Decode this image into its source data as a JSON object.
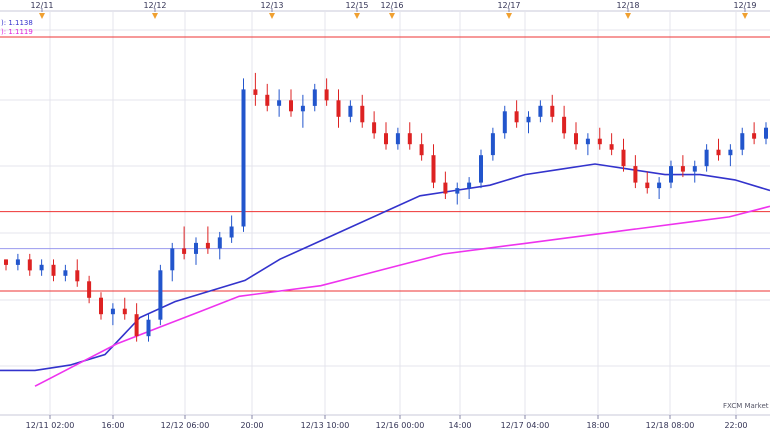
{
  "chart_data": {
    "type": "candlestick",
    "top_axis_dates": [
      "12/11",
      "12/12",
      "12/13",
      "12/15",
      "12/16",
      "12/17",
      "12/18",
      "12/19"
    ],
    "bottom_axis_times": [
      "12/11 02:00",
      "16:00",
      "12/12 06:00",
      "20:00",
      "12/13 10:00",
      "12/16 00:00",
      "14:00",
      "12/17 04:00",
      "18:00",
      "12/18 08:00",
      "22:00"
    ],
    "legend": [
      {
        "text": "): 1.1138",
        "color": "#3333cc"
      },
      {
        "text": "): 1.1119",
        "color": "#dd22dd"
      }
    ],
    "watermark": "FXCM Market",
    "ohlc": [
      [
        0,
        0.22,
        0.22,
        0.2,
        0.21
      ],
      [
        1,
        0.21,
        0.23,
        0.2,
        0.22
      ],
      [
        2,
        0.22,
        0.23,
        0.19,
        0.2
      ],
      [
        3,
        0.2,
        0.22,
        0.19,
        0.21
      ],
      [
        4,
        0.21,
        0.22,
        0.18,
        0.19
      ],
      [
        5,
        0.19,
        0.21,
        0.18,
        0.2
      ],
      [
        6,
        0.2,
        0.22,
        0.17,
        0.18
      ],
      [
        7,
        0.18,
        0.19,
        0.14,
        0.15
      ],
      [
        8,
        0.15,
        0.16,
        0.11,
        0.12
      ],
      [
        9,
        0.12,
        0.14,
        0.1,
        0.13
      ],
      [
        10,
        0.13,
        0.15,
        0.11,
        0.12
      ],
      [
        11,
        0.12,
        0.14,
        0.07,
        0.08
      ],
      [
        12,
        0.08,
        0.12,
        0.07,
        0.11
      ],
      [
        13,
        0.11,
        0.21,
        0.1,
        0.2
      ],
      [
        14,
        0.2,
        0.25,
        0.18,
        0.24
      ],
      [
        15,
        0.24,
        0.28,
        0.22,
        0.23
      ],
      [
        16,
        0.23,
        0.26,
        0.21,
        0.25
      ],
      [
        17,
        0.25,
        0.28,
        0.23,
        0.24
      ],
      [
        18,
        0.24,
        0.27,
        0.22,
        0.26
      ],
      [
        19,
        0.26,
        0.3,
        0.25,
        0.28
      ],
      [
        20,
        0.28,
        0.55,
        0.27,
        0.53
      ],
      [
        21,
        0.53,
        0.56,
        0.5,
        0.52
      ],
      [
        22,
        0.52,
        0.54,
        0.49,
        0.5
      ],
      [
        23,
        0.5,
        0.53,
        0.48,
        0.51
      ],
      [
        24,
        0.51,
        0.53,
        0.48,
        0.49
      ],
      [
        25,
        0.49,
        0.52,
        0.46,
        0.5
      ],
      [
        26,
        0.5,
        0.54,
        0.49,
        0.53
      ],
      [
        27,
        0.53,
        0.55,
        0.5,
        0.51
      ],
      [
        28,
        0.51,
        0.53,
        0.46,
        0.48
      ],
      [
        29,
        0.48,
        0.51,
        0.47,
        0.5
      ],
      [
        30,
        0.5,
        0.52,
        0.46,
        0.47
      ],
      [
        31,
        0.47,
        0.49,
        0.44,
        0.45
      ],
      [
        32,
        0.45,
        0.47,
        0.42,
        0.43
      ],
      [
        33,
        0.43,
        0.46,
        0.42,
        0.45
      ],
      [
        34,
        0.45,
        0.47,
        0.42,
        0.43
      ],
      [
        35,
        0.43,
        0.45,
        0.4,
        0.41
      ],
      [
        36,
        0.41,
        0.43,
        0.35,
        0.36
      ],
      [
        37,
        0.36,
        0.38,
        0.33,
        0.34
      ],
      [
        38,
        0.34,
        0.36,
        0.32,
        0.35
      ],
      [
        39,
        0.35,
        0.37,
        0.33,
        0.36
      ],
      [
        40,
        0.36,
        0.42,
        0.35,
        0.41
      ],
      [
        41,
        0.41,
        0.46,
        0.4,
        0.45
      ],
      [
        42,
        0.45,
        0.5,
        0.44,
        0.49
      ],
      [
        43,
        0.49,
        0.51,
        0.46,
        0.47
      ],
      [
        44,
        0.47,
        0.49,
        0.45,
        0.48
      ],
      [
        45,
        0.48,
        0.51,
        0.47,
        0.5
      ],
      [
        46,
        0.5,
        0.52,
        0.47,
        0.48
      ],
      [
        47,
        0.48,
        0.5,
        0.44,
        0.45
      ],
      [
        48,
        0.45,
        0.47,
        0.42,
        0.43
      ],
      [
        49,
        0.43,
        0.45,
        0.41,
        0.44
      ],
      [
        50,
        0.44,
        0.46,
        0.42,
        0.43
      ],
      [
        51,
        0.43,
        0.45,
        0.41,
        0.42
      ],
      [
        52,
        0.42,
        0.44,
        0.38,
        0.39
      ],
      [
        53,
        0.39,
        0.41,
        0.35,
        0.36
      ],
      [
        54,
        0.36,
        0.38,
        0.34,
        0.35
      ],
      [
        55,
        0.35,
        0.37,
        0.33,
        0.36
      ],
      [
        56,
        0.36,
        0.4,
        0.35,
        0.39
      ],
      [
        57,
        0.39,
        0.41,
        0.37,
        0.38
      ],
      [
        58,
        0.38,
        0.4,
        0.36,
        0.39
      ],
      [
        59,
        0.39,
        0.43,
        0.38,
        0.42
      ],
      [
        60,
        0.42,
        0.44,
        0.4,
        0.41
      ],
      [
        61,
        0.41,
        0.43,
        0.39,
        0.42
      ],
      [
        62,
        0.42,
        0.46,
        0.41,
        0.45
      ],
      [
        63,
        0.45,
        0.47,
        0.43,
        0.44
      ],
      [
        64,
        0.44,
        0.47,
        0.43,
        0.46
      ]
    ],
    "blue_ma": [
      1.1122,
      1.1122,
      1.1123,
      1.1125,
      1.1132,
      1.1135,
      1.1137,
      1.1139,
      1.1143,
      1.1146,
      1.1149,
      1.1152,
      1.1155,
      1.1156,
      1.1157,
      1.1159,
      1.116,
      1.1161,
      1.116,
      1.1159,
      1.1159,
      1.1158,
      1.1156
    ],
    "magenta_ma": [
      1.1119,
      1.1123,
      1.1127,
      1.113,
      1.1133,
      1.1136,
      1.1137,
      1.1138,
      1.114,
      1.1142,
      1.1144,
      1.1145,
      1.1146,
      1.1147,
      1.1148,
      1.1149,
      1.115,
      1.1151,
      1.1153
    ],
    "red_lines": [
      1.1185,
      1.1152,
      1.1137
    ],
    "blue_hline": 1.1145
  }
}
